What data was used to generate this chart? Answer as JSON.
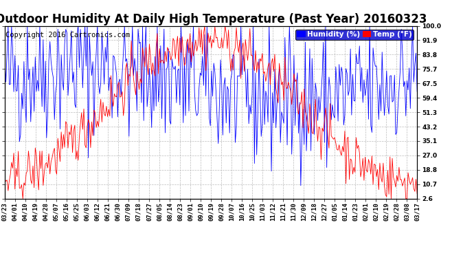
{
  "title": "Outdoor Humidity At Daily High Temperature (Past Year) 20160323",
  "copyright": "Copyright 2016 Cartronics.com",
  "legend_humidity": "Humidity (%)",
  "legend_temp": "Temp (°F)",
  "bg_color": "#ffffff",
  "plot_bg_color": "#ffffff",
  "grid_color": "#bbbbbb",
  "humidity_color": "#0000ff",
  "temp_color": "#ff0000",
  "black_color": "#000000",
  "yticks": [
    2.6,
    10.7,
    18.8,
    27.0,
    35.1,
    43.2,
    51.3,
    59.4,
    67.5,
    75.7,
    83.8,
    91.9,
    100.0
  ],
  "xtick_labels": [
    "03/23",
    "04/01",
    "04/10",
    "04/19",
    "04/28",
    "05/07",
    "05/16",
    "05/25",
    "06/03",
    "06/12",
    "06/21",
    "06/30",
    "07/09",
    "07/18",
    "07/27",
    "08/05",
    "08/14",
    "08/23",
    "09/01",
    "09/10",
    "09/19",
    "09/28",
    "10/07",
    "10/16",
    "10/25",
    "11/03",
    "11/12",
    "11/21",
    "11/30",
    "12/09",
    "12/18",
    "12/27",
    "01/05",
    "01/14",
    "01/23",
    "02/01",
    "02/10",
    "02/19",
    "02/28",
    "03/08",
    "03/17"
  ],
  "ylim_min": 2.6,
  "ylim_max": 100.0,
  "title_fontsize": 12,
  "copyright_fontsize": 7.5,
  "tick_fontsize": 6.5,
  "legend_fontsize": 7.5
}
